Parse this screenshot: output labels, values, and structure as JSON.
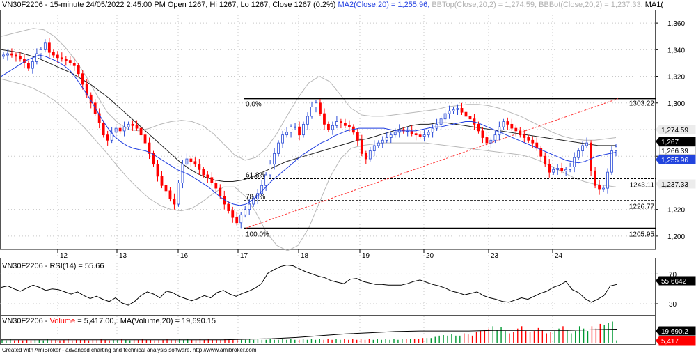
{
  "header": {
    "symbol": "VN30F2206 - 15-minute 24/05/2022 2:45:00 PM Open 1267, Hi 1267, Lo 1267, Close 1267 (0.2%)",
    "ma": "MA2(Close,20) = 1,255.96,",
    "bbtop": "BBTop(Close,20,2) = 1,274.59,",
    "bbbot": "BBBot(Close,20,2) = 1,237.33,",
    "ma1": "MA1("
  },
  "rsi_header": "VN30F2206 - RSI(14) = 55.66",
  "vol_header": {
    "prefix": "VN30F2206 - ",
    "volume": "Volume",
    "rest": " = 5,417.00,  MA(Volume,20) = 19,690.15"
  },
  "credit": "Created with AmiBroker - advanced charting and technical analysis software. http://www.amibroker.com",
  "colors": {
    "up": "#009933",
    "down": "#ff0000",
    "candle_up": "#2a4bd7",
    "ma": "#1f3de0",
    "ma1": "#222222",
    "bb": "#b8b8b8",
    "grid": "#c8c8c8"
  },
  "chart_data": [
    {
      "type": "candlestick",
      "x_labels": [
        "12",
        "13",
        "16",
        "17",
        "18",
        "19",
        "20",
        "23",
        "24"
      ],
      "y_ticks": [
        "1,360",
        "1,340",
        "1,320",
        "1,300",
        "1,280",
        "1,260",
        "1,240",
        "1,220",
        "1,200"
      ],
      "ylim": [
        1190,
        1370
      ],
      "fib_levels": [
        {
          "pct": "0.0%",
          "value": "1303.22",
          "y": 1303.22
        },
        {
          "pct": "61.8%",
          "value": "1243.11",
          "y": 1243.11
        },
        {
          "pct": "78.6%",
          "value": "1226.77",
          "y": 1226.77
        },
        {
          "pct": "100.0%",
          "value": "1205.95",
          "y": 1205.95
        }
      ],
      "value_badges": [
        {
          "text": "1,274.59",
          "y": 1274.59,
          "bg": "#ececec",
          "fg": "#000000"
        },
        {
          "text": "1,267",
          "y": 1267,
          "bg": "#000000",
          "fg": "#ffffff"
        },
        {
          "text": "1,266.39",
          "y": 1266.39,
          "bg": "#ffffff",
          "fg": "#000000"
        },
        {
          "text": "1,255.96",
          "y": 1255.96,
          "bg": "#2244dd",
          "fg": "#ffffff"
        },
        {
          "text": "1,237.33",
          "y": 1237.33,
          "bg": "#ececec",
          "fg": "#000000"
        }
      ],
      "close": [
        1336,
        1337,
        1336,
        1335,
        1333,
        1330,
        1326,
        1331,
        1337,
        1340,
        1345,
        1338,
        1336,
        1334,
        1333,
        1332,
        1330,
        1328,
        1322,
        1314,
        1306,
        1300,
        1292,
        1285,
        1276,
        1272,
        1278,
        1281,
        1279,
        1282,
        1284,
        1283,
        1281,
        1276,
        1270,
        1262,
        1254,
        1245,
        1238,
        1234,
        1228,
        1224,
        1240,
        1254,
        1258,
        1256,
        1254,
        1250,
        1246,
        1244,
        1240,
        1236,
        1230,
        1224,
        1219,
        1214,
        1210,
        1216,
        1220,
        1224,
        1228,
        1232,
        1238,
        1246,
        1254,
        1262,
        1270,
        1276,
        1278,
        1282,
        1282,
        1276,
        1284,
        1290,
        1297,
        1300,
        1292,
        1284,
        1280,
        1283,
        1286,
        1285,
        1283,
        1282,
        1278,
        1272,
        1262,
        1258,
        1264,
        1268,
        1270,
        1272,
        1274,
        1276,
        1278,
        1280,
        1279,
        1279,
        1277,
        1276,
        1275,
        1276,
        1278,
        1281,
        1284,
        1288,
        1292,
        1294,
        1295,
        1296,
        1293,
        1290,
        1288,
        1284,
        1279,
        1274,
        1270,
        1272,
        1276,
        1282,
        1286,
        1284,
        1281,
        1279,
        1276,
        1274,
        1272,
        1270,
        1266,
        1260,
        1254,
        1248,
        1250,
        1251,
        1249,
        1250,
        1252,
        1259,
        1264,
        1268,
        1270,
        1249,
        1238,
        1235,
        1236,
        1248,
        1264,
        1267
      ],
      "ma": [
        1320,
        1323,
        1326,
        1329,
        1332,
        1334,
        1336,
        1335,
        1333,
        1331,
        1328,
        1324,
        1318,
        1311,
        1304,
        1296,
        1288,
        1281,
        1275,
        1271,
        1268,
        1266,
        1265,
        1264,
        1262,
        1259,
        1256,
        1253,
        1250,
        1248,
        1246,
        1243,
        1240,
        1237,
        1233,
        1229,
        1226,
        1224,
        1223,
        1224,
        1227,
        1231,
        1236,
        1241,
        1245,
        1249,
        1253,
        1257,
        1261,
        1264,
        1267,
        1270,
        1272,
        1275,
        1277,
        1279,
        1280,
        1281,
        1281,
        1281,
        1281,
        1281,
        1280,
        1279,
        1279,
        1279,
        1279,
        1280,
        1281,
        1282,
        1282,
        1283,
        1284,
        1285,
        1286,
        1286,
        1285,
        1283,
        1281,
        1279,
        1277,
        1275,
        1273,
        1271,
        1269,
        1267,
        1265,
        1263,
        1261,
        1259,
        1257,
        1256,
        1255,
        1256,
        1258,
        1260,
        1261,
        1262,
        1263
      ],
      "ma1": [
        1340,
        1339,
        1338,
        1336,
        1334,
        1331,
        1328,
        1325,
        1322,
        1318,
        1314,
        1309,
        1304,
        1298,
        1292,
        1286,
        1280,
        1274,
        1268,
        1262,
        1256,
        1251,
        1247,
        1244,
        1242,
        1241,
        1241,
        1242,
        1244,
        1247,
        1250,
        1253,
        1256,
        1258,
        1260,
        1262,
        1264,
        1266,
        1268,
        1270,
        1272,
        1273,
        1275,
        1277,
        1279,
        1281,
        1283,
        1284,
        1284,
        1285,
        1285,
        1284,
        1283,
        1282,
        1281,
        1280,
        1279,
        1278,
        1277,
        1276,
        1275,
        1274,
        1273,
        1272,
        1271,
        1270,
        1269,
        1268,
        1268,
        1268
      ],
      "bb_top": [
        1350,
        1352,
        1354,
        1356,
        1355,
        1350,
        1342,
        1332,
        1320,
        1306,
        1293,
        1285,
        1280,
        1279,
        1281,
        1284,
        1286,
        1287,
        1286,
        1283,
        1277,
        1269,
        1261,
        1257,
        1259,
        1266,
        1277,
        1291,
        1304,
        1315,
        1320,
        1316,
        1306,
        1296,
        1291,
        1290,
        1290,
        1291,
        1292,
        1293,
        1294,
        1295,
        1297,
        1298,
        1299,
        1299,
        1298,
        1296,
        1293,
        1290,
        1286,
        1282,
        1278,
        1275,
        1273,
        1272,
        1272,
        1273,
        1274
      ],
      "bb_bot": [
        1318,
        1316,
        1314,
        1311,
        1307,
        1302,
        1295,
        1288,
        1280,
        1271,
        1262,
        1252,
        1243,
        1235,
        1228,
        1223,
        1220,
        1219,
        1221,
        1226,
        1232,
        1237,
        1237,
        1230,
        1218,
        1203,
        1193,
        1189,
        1193,
        1206,
        1225,
        1244,
        1258,
        1266,
        1268,
        1269,
        1270,
        1270,
        1270,
        1270,
        1270,
        1269,
        1268,
        1267,
        1266,
        1265,
        1264,
        1263,
        1262,
        1261,
        1259,
        1256,
        1252,
        1248,
        1244,
        1241,
        1239,
        1238,
        1237
      ]
    },
    {
      "type": "line",
      "name": "RSI(14)",
      "y_ticks": [
        "70",
        "30"
      ],
      "ylim": [
        15,
        90
      ],
      "values": [
        52,
        54,
        50,
        47,
        51,
        55,
        52,
        48,
        50,
        49,
        46,
        43,
        46,
        41,
        37,
        40,
        36,
        33,
        38,
        31,
        28,
        33,
        41,
        46,
        43,
        38,
        47,
        45,
        40,
        37,
        34,
        37,
        41,
        38,
        45,
        48,
        43,
        40,
        44,
        47,
        51,
        57,
        71,
        76,
        80,
        82,
        81,
        77,
        73,
        70,
        67,
        65,
        61,
        59,
        57,
        63,
        64,
        60,
        58,
        56,
        56,
        55,
        55,
        55,
        57,
        60,
        62,
        59,
        56,
        54,
        51,
        47,
        45,
        42,
        44,
        46,
        41,
        38,
        36,
        33,
        32,
        35,
        38,
        36,
        40,
        44,
        47,
        52,
        55,
        60,
        49,
        45,
        37,
        32,
        36,
        41,
        54,
        56
      ]
    },
    {
      "type": "bar",
      "name": "Volume",
      "values": [
        0.5,
        0.4,
        0.6,
        0.4,
        0.5,
        0.4,
        0.5,
        0.4,
        0.5,
        0.5,
        0.4,
        0.6,
        0.5,
        0.5,
        0.4,
        0.5,
        0.6,
        0.4,
        0.5,
        0.5,
        0.5,
        0.4,
        0.5,
        0.5,
        0.6,
        0.5,
        0.4,
        0.5,
        0.5,
        0.6,
        0.5,
        0.4,
        0.5,
        0.5,
        0.6,
        0.5,
        0.5,
        0.4,
        0.5,
        0.5,
        0.6,
        0.5,
        0.5,
        0.6,
        0.5,
        0.6,
        0.5,
        0.5,
        0.6,
        0.5,
        0.6,
        0.5,
        0.5,
        0.5,
        0.6,
        0.5,
        0.5,
        0.6,
        0.5,
        0.5,
        0.6,
        0.5,
        0.6,
        0.5,
        0.5,
        0.6,
        0.5,
        0.5,
        0.6,
        0.5,
        0.6,
        0.5,
        0.5,
        0.6,
        0.5,
        0.6,
        0.5,
        0.6,
        0.5,
        0.6,
        0.5,
        0.6,
        0.5,
        0.6,
        0.5,
        0.6,
        0.5,
        0.6,
        0.5,
        0.6,
        0.5,
        0.6,
        0.5,
        0.6,
        0.5,
        0.6,
        0.5,
        0.6,
        0.6,
        0.6,
        0.6,
        0.7,
        0.8,
        0.8,
        0.8,
        1.0,
        1.2,
        1.3,
        1.2,
        1.5,
        1.2,
        1.2,
        1.6,
        1.4,
        1.2,
        1.8,
        2.0,
        2.2,
        2.4,
        2.8,
        2.2,
        2.6,
        2.0,
        1.6,
        1.8,
        2.4,
        2.8,
        2.0,
        1.8,
        2.0,
        2.5,
        2.2,
        1.6,
        1.8,
        2.0,
        2.4,
        2.8,
        2.2,
        1.6,
        2.0,
        2.8,
        2.4,
        2.0,
        2.8,
        2.4,
        3.2,
        3.0,
        3.4,
        3.6,
        0.4
      ],
      "ma": [
        0.5,
        0.5,
        0.5,
        0.5,
        0.5,
        0.5,
        0.5,
        0.5,
        0.5,
        0.5,
        0.6,
        0.7,
        0.9,
        1.2,
        1.5,
        1.7,
        1.9,
        2.0,
        2.0,
        2.0,
        2.1,
        2.1,
        2.1,
        2.1,
        2.2,
        2.3
      ],
      "value_badges": [
        {
          "text": "19,690.2",
          "bg": "#000000",
          "fg": "#ffffff"
        },
        {
          "text": "5,417",
          "bg": "#ff0000",
          "fg": "#ffffff"
        }
      ]
    }
  ],
  "rsi_badge": "55.6642"
}
